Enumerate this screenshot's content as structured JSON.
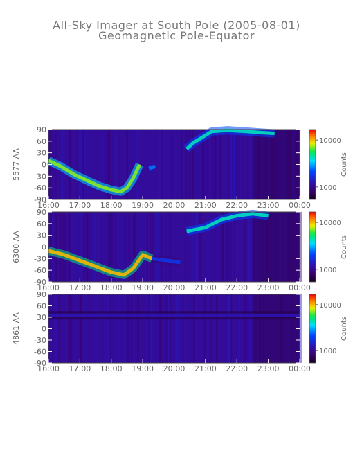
{
  "page": {
    "title": "All-Sky Imager at South Pole (2005-08-01)",
    "subtitle": "Geomagnetic Pole-Equator"
  },
  "chart_data": [
    {
      "type": "heatmap",
      "ylabel": "5577 AA",
      "colorbar_label": "Counts",
      "colorbar_ticks": [
        "10000",
        "1000"
      ],
      "x_ticks": [
        "16:00",
        "17:00",
        "18:00",
        "19:00",
        "20:00",
        "21:00",
        "22:00",
        "23:00",
        "00:00"
      ],
      "y_ticks": [
        90,
        60,
        30,
        0,
        -30,
        -60,
        -90
      ],
      "xlim": [
        16,
        24
      ],
      "ylim": [
        -90,
        90
      ],
      "arcs": [
        {
          "x": [
            16.0,
            16.4,
            16.8,
            17.2,
            17.6,
            18.0,
            18.3,
            18.5,
            18.7,
            18.9
          ],
          "y": [
            10,
            -5,
            -25,
            -40,
            -55,
            -65,
            -70,
            -60,
            -35,
            0
          ],
          "intensity": 0.75
        },
        {
          "x": [
            19.2,
            19.4
          ],
          "y": [
            -10,
            -5
          ],
          "intensity": 0.45
        },
        {
          "x": [
            20.4,
            20.6,
            20.9,
            21.2,
            21.7,
            22.3,
            22.8,
            23.2
          ],
          "y": [
            40,
            55,
            70,
            85,
            88,
            85,
            82,
            80
          ],
          "intensity": 0.6
        }
      ]
    },
    {
      "type": "heatmap",
      "ylabel": "6300 AA",
      "colorbar_label": "Counts",
      "colorbar_ticks": [
        "10000",
        "1000"
      ],
      "x_ticks": [
        "16:00",
        "17:00",
        "18:00",
        "19:00",
        "20:00",
        "21:00",
        "22:00",
        "23:00",
        "00:00"
      ],
      "y_ticks": [
        90,
        60,
        30,
        0,
        -30,
        -60,
        -90
      ],
      "xlim": [
        16,
        24
      ],
      "ylim": [
        -90,
        90
      ],
      "arcs": [
        {
          "x": [
            16.0,
            16.5,
            17.0,
            17.5,
            18.0,
            18.4,
            18.7,
            19.0,
            19.3
          ],
          "y": [
            -10,
            -20,
            -35,
            -50,
            -65,
            -72,
            -55,
            -20,
            -30
          ],
          "intensity": 0.85
        },
        {
          "x": [
            19.3,
            19.8,
            20.2
          ],
          "y": [
            -30,
            -35,
            -40
          ],
          "intensity": 0.35
        },
        {
          "x": [
            20.4,
            20.7,
            21.0,
            21.5,
            22.0,
            22.5,
            23.0
          ],
          "y": [
            40,
            45,
            50,
            70,
            80,
            85,
            80
          ],
          "intensity": 0.6
        }
      ]
    },
    {
      "type": "heatmap",
      "ylabel": "4861 AA",
      "colorbar_label": "Counts",
      "colorbar_ticks": [
        "10000",
        "1000"
      ],
      "x_ticks": [
        "16:00",
        "17:00",
        "18:00",
        "19:00",
        "20:00",
        "21:00",
        "22:00",
        "23:00",
        "00:00"
      ],
      "y_ticks": [
        90,
        60,
        30,
        0,
        -30,
        -60,
        -90
      ],
      "xlim": [
        16,
        24
      ],
      "ylim": [
        -90,
        90
      ],
      "arcs": [
        {
          "x": [
            16.0,
            18.0,
            20.0,
            22.0,
            24.0
          ],
          "y": [
            35,
            35,
            35,
            35,
            35
          ],
          "intensity": 0.25
        }
      ]
    }
  ]
}
